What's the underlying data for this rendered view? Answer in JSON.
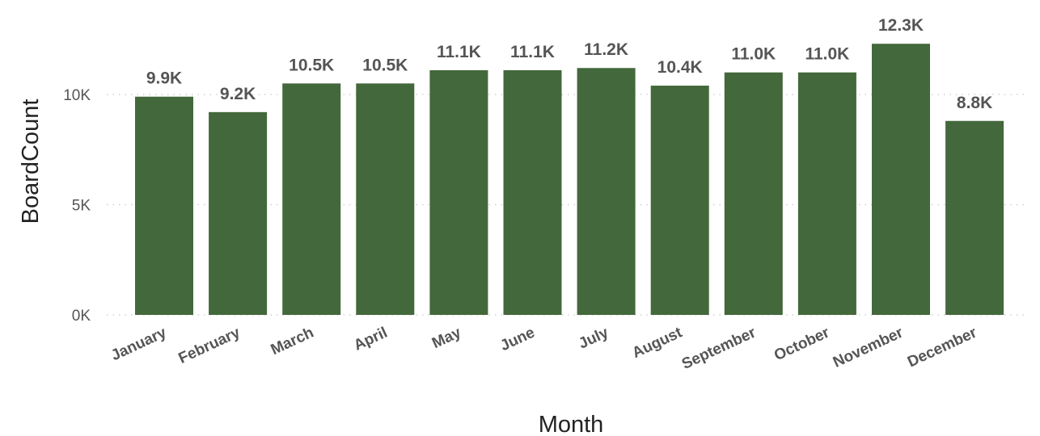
{
  "chart_data": {
    "type": "bar",
    "title": "",
    "xlabel": "Month",
    "ylabel": "BoardCount",
    "categories": [
      "January",
      "February",
      "March",
      "April",
      "May",
      "June",
      "July",
      "August",
      "September",
      "October",
      "November",
      "December"
    ],
    "values": [
      9900,
      9200,
      10500,
      10500,
      11100,
      11100,
      11200,
      10400,
      11000,
      11000,
      12300,
      8800
    ],
    "data_labels": [
      "9.9K",
      "9.2K",
      "10.5K",
      "10.5K",
      "11.1K",
      "11.1K",
      "11.2K",
      "10.4K",
      "11.0K",
      "11.0K",
      "12.3K",
      "8.8K"
    ],
    "yticks": [
      {
        "value": 0,
        "label": "0K"
      },
      {
        "value": 5000,
        "label": "5K"
      },
      {
        "value": 10000,
        "label": "10K"
      }
    ],
    "ylim": [
      0,
      12300
    ],
    "grid": true,
    "legend": "none",
    "bar_color": "#43683b"
  }
}
